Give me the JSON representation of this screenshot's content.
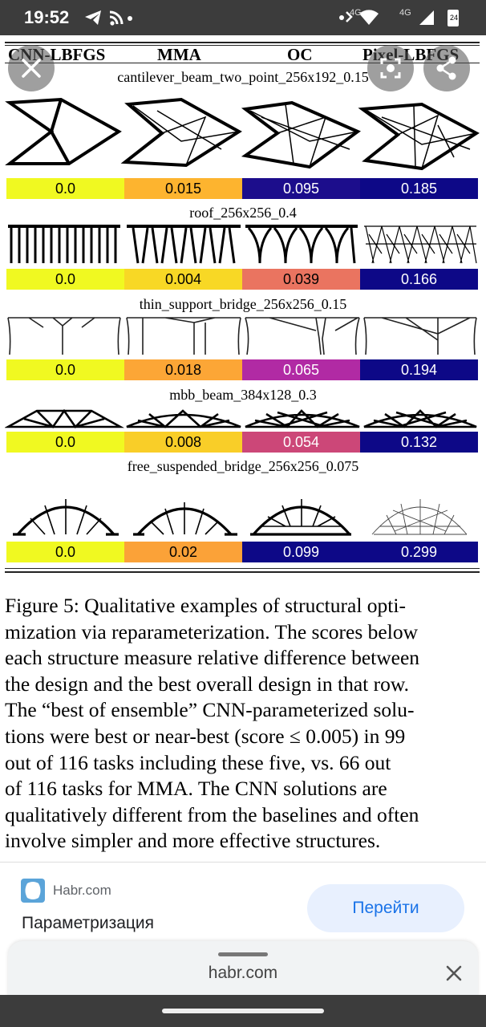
{
  "status_bar": {
    "time": "19:52",
    "net_label_1": "4G",
    "net_label_2": "4G",
    "battery": "24"
  },
  "figure": {
    "headers": [
      "CNN-LBFGS",
      "MMA",
      "OC",
      "Pixel-LBFGS"
    ],
    "rows": [
      {
        "title": "cantilever_beam_two_point_256x192_0.15",
        "scores": [
          "0.0",
          "0.015",
          "0.095",
          "0.185"
        ],
        "colors": [
          "#f0f921",
          "#fdb42f",
          "#1c0d8c",
          "#0d0887"
        ]
      },
      {
        "title": "roof_256x256_0.4",
        "scores": [
          "0.0",
          "0.004",
          "0.039",
          "0.166"
        ],
        "colors": [
          "#f0f921",
          "#f8d825",
          "#ea7460",
          "#0d0887"
        ]
      },
      {
        "title": "thin_support_bridge_256x256_0.15",
        "scores": [
          "0.0",
          "0.018",
          "0.065",
          "0.194"
        ],
        "colors": [
          "#f0f921",
          "#fca636",
          "#b12aa4",
          "#0d0887"
        ]
      },
      {
        "title": "mbb_beam_384x128_0.3",
        "scores": [
          "0.0",
          "0.008",
          "0.054",
          "0.132"
        ],
        "colors": [
          "#f0f921",
          "#f9ce28",
          "#cc4778",
          "#0d0887"
        ]
      },
      {
        "title": "free_suspended_bridge_256x256_0.075",
        "scores": [
          "0.0",
          "0.02",
          "0.099",
          "0.299"
        ],
        "colors": [
          "#f0f921",
          "#fba238",
          "#0d0887",
          "#0d0887"
        ]
      }
    ],
    "caption_lines": [
      "Figure 5: Qualitative examples of structural opti-",
      "mization via reparameterization. The scores below",
      "each structure measure relative difference between",
      "the design and the best overall design in that row.",
      "The “best of ensemble” CNN-parameterized solu-",
      "tions were best or near-best (score ≤ 0.005) in 99",
      "out of 116 tasks including these five, vs. 66 out",
      "of 116 tasks for MMA. The CNN solutions are",
      "qualitatively different from the baselines and often",
      "involve simpler and more effective structures."
    ]
  },
  "overlay": {
    "close_icon": "close-icon",
    "lens_icon": "lens-icon",
    "share_icon": "share-icon"
  },
  "ad": {
    "domain": "Habr.com",
    "title": "Параметризация",
    "button_label": "Перейти"
  },
  "url_sheet": {
    "url": "habr.com"
  }
}
